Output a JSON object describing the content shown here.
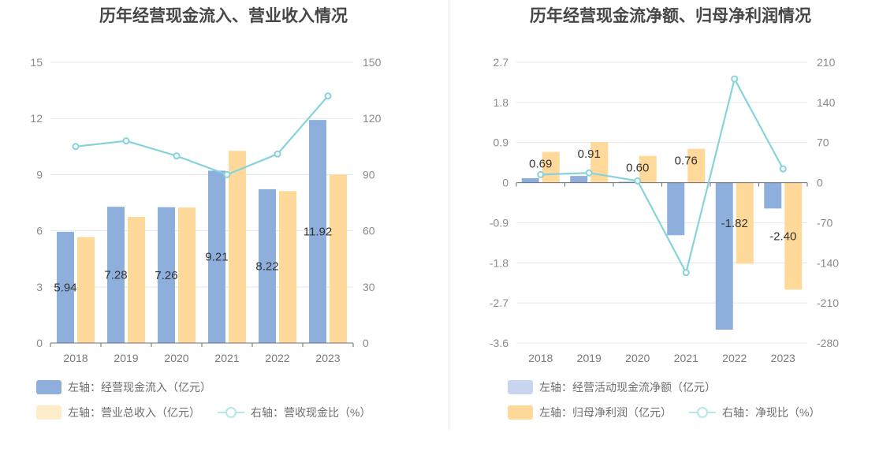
{
  "chart_data": [
    {
      "type": "bar",
      "title": "历年经营现金流入、营业收入情况",
      "categories": [
        "2018",
        "2019",
        "2020",
        "2021",
        "2022",
        "2023"
      ],
      "left_axis": {
        "ticks": [
          "0",
          "3",
          "6",
          "9",
          "12",
          "15"
        ],
        "min": 0,
        "max": 15
      },
      "right_axis": {
        "ticks": [
          "0",
          "30",
          "60",
          "90",
          "120",
          "150"
        ],
        "min": 0,
        "max": 150
      },
      "series": [
        {
          "name": "左轴：经营现金流入（亿元）",
          "axis": "left",
          "kind": "bar",
          "color": "#8eaedc",
          "values": [
            5.94,
            7.28,
            7.26,
            9.21,
            8.22,
            11.92
          ],
          "labels": [
            "5.94",
            "7.28",
            "7.26",
            "9.21",
            "8.22",
            "11.92"
          ]
        },
        {
          "name": "左轴：营业总收入（亿元）",
          "axis": "left",
          "kind": "bar",
          "color": "#ffd99a",
          "values": [
            5.66,
            6.74,
            7.24,
            10.27,
            8.12,
            9.0
          ]
        },
        {
          "name": "右轴：营收现金比（%）",
          "axis": "right",
          "kind": "line",
          "color": "#86d3dc",
          "values": [
            105,
            108,
            100,
            90,
            101,
            132
          ]
        }
      ],
      "legend": "bottom-left",
      "grid": true
    },
    {
      "type": "bar",
      "title": "历年经营现金流净额、归母净利润情况",
      "categories": [
        "2018",
        "2019",
        "2020",
        "2021",
        "2022",
        "2023"
      ],
      "left_axis": {
        "ticks": [
          "2.7",
          "1.8",
          "0.9",
          "0",
          "-0.9",
          "-1.8",
          "-2.7",
          "-3.6"
        ],
        "min": -3.6,
        "max": 2.7
      },
      "right_axis": {
        "ticks": [
          "210",
          "140",
          "70",
          "0",
          "-70",
          "-140",
          "-210",
          "-280"
        ],
        "min": -280,
        "max": 210
      },
      "series": [
        {
          "name": "左轴：经营活动现金流净额（亿元）",
          "axis": "left",
          "kind": "bar",
          "color": "#8eaedc",
          "legend_color": "#c7d6ee",
          "values": [
            0.1,
            0.15,
            0.02,
            -1.18,
            -3.3,
            -0.58
          ]
        },
        {
          "name": "左轴：归母净利润（亿元）",
          "axis": "left",
          "kind": "bar",
          "color": "#ffd99a",
          "values": [
            0.69,
            0.91,
            0.6,
            0.76,
            -1.82,
            -2.4
          ],
          "labels": [
            "0.69",
            "0.91",
            "0.60",
            "0.76",
            "-1.82",
            "-2.40"
          ]
        },
        {
          "name": "右轴：净现比（%）",
          "axis": "right",
          "kind": "line",
          "color": "#86d3dc",
          "values": [
            14,
            17,
            3,
            -157,
            181,
            24
          ]
        }
      ],
      "legend": "bottom-left",
      "grid": true
    }
  ]
}
